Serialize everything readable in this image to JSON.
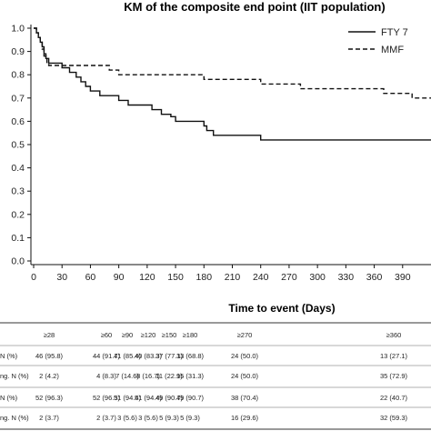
{
  "chart_data": {
    "type": "line",
    "title": "KM of the composite end point (IIT population)",
    "xlabel": "Time to event (Days)",
    "ylabel": "",
    "xlim": [
      0,
      420
    ],
    "ylim": [
      0,
      1.0
    ],
    "x_ticks": [
      "0",
      "30",
      "60",
      "90",
      "120",
      "150",
      "180",
      "210",
      "240",
      "270",
      "300",
      "330",
      "360",
      "390"
    ],
    "y_ticks": [
      "0.0",
      "0.1",
      "0.2",
      "0.3",
      "0.4",
      "0.5",
      "0.6",
      "0.7",
      "0.8",
      "0.9",
      "1.0"
    ],
    "grid": false,
    "legend_position": "top-right",
    "series": [
      {
        "name": "FTY 7",
        "dash": "solid",
        "points": [
          [
            0,
            1.0
          ],
          [
            3,
            0.98
          ],
          [
            5,
            0.96
          ],
          [
            7,
            0.94
          ],
          [
            9,
            0.92
          ],
          [
            11,
            0.89
          ],
          [
            13,
            0.87
          ],
          [
            16,
            0.85
          ],
          [
            30,
            0.83
          ],
          [
            38,
            0.81
          ],
          [
            45,
            0.79
          ],
          [
            50,
            0.77
          ],
          [
            55,
            0.75
          ],
          [
            60,
            0.73
          ],
          [
            70,
            0.71
          ],
          [
            90,
            0.69
          ],
          [
            100,
            0.67
          ],
          [
            125,
            0.65
          ],
          [
            135,
            0.63
          ],
          [
            145,
            0.62
          ],
          [
            150,
            0.6
          ],
          [
            180,
            0.58
          ],
          [
            183,
            0.56
          ],
          [
            190,
            0.54
          ],
          [
            240,
            0.52
          ],
          [
            420,
            0.52
          ]
        ]
      },
      {
        "name": "MMF",
        "dash": "dashed",
        "points": [
          [
            0,
            1.0
          ],
          [
            3,
            0.98
          ],
          [
            5,
            0.96
          ],
          [
            7,
            0.94
          ],
          [
            9,
            0.91
          ],
          [
            11,
            0.88
          ],
          [
            14,
            0.85
          ],
          [
            16,
            0.84
          ],
          [
            80,
            0.82
          ],
          [
            90,
            0.8
          ],
          [
            180,
            0.78
          ],
          [
            240,
            0.76
          ],
          [
            282,
            0.74
          ],
          [
            370,
            0.72
          ],
          [
            400,
            0.7
          ],
          [
            420,
            0.7
          ]
        ]
      }
    ]
  },
  "risk_table": {
    "headers": [
      "≥28",
      "≥60",
      "≥90",
      "≥120",
      "≥150",
      "≥180",
      "≥270",
      "≥360"
    ],
    "rows": [
      {
        "label": "N (%)",
        "cells": [
          "46 (95.8)",
          "44 (91.7)",
          "41 (85.4)",
          "40 (83.3)",
          "37 (77.1)",
          "33 (68.8)",
          "24 (50.0)",
          "13 (27.1)"
        ]
      },
      {
        "label": "ng. N (%)",
        "cells": [
          "2 (4.2)",
          "4 (8.3)",
          "7 (14.6)",
          "8 (16.7)",
          "11 (22.9)",
          "15 (31.3)",
          "24 (50.0)",
          "35 (72.9)"
        ]
      },
      {
        "label": "N (%)",
        "cells": [
          "52 (96.3)",
          "52 (96.3)",
          "51 (94.4)",
          "51 (94.4)",
          "49 (90.7)",
          "49 (90.7)",
          "38 (70.4)",
          "22 (40.7)"
        ]
      },
      {
        "label": "ng. N (%)",
        "cells": [
          "2 (3.7)",
          "2 (3.7)",
          "3 (5.6)",
          "3 (5.6)",
          "5 (9.3)",
          "5 (9.3)",
          "16 (29.6)",
          "32 (59.3)"
        ]
      }
    ]
  }
}
